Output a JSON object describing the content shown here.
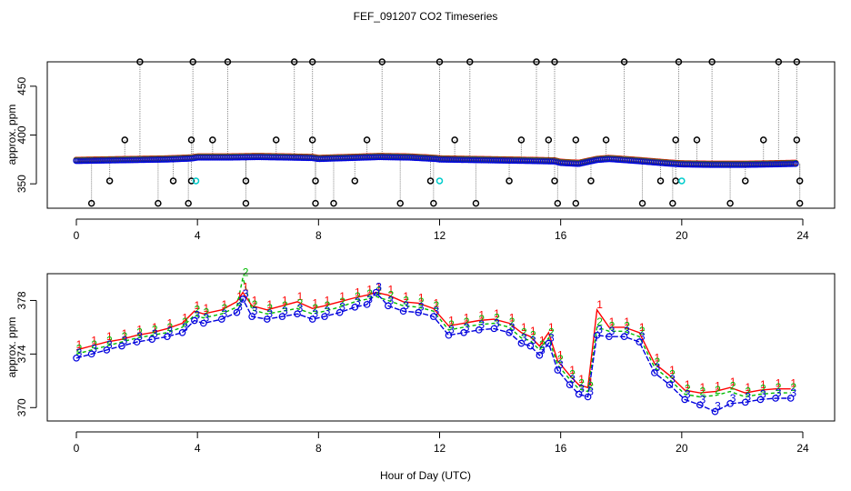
{
  "title": "FEF_091207  CO2 Timeseries",
  "xlabel": "Hour of Day (UTC)",
  "colors": {
    "series1": "#ff0000",
    "series2": "#00bb00",
    "series3": "#0000dd",
    "outlier": "#000000",
    "flagged": "#00cccc",
    "connector": "#888888"
  },
  "chart_data": [
    {
      "type": "scatter",
      "panel": "top",
      "ylabel": "approx. ppm",
      "xlim": [
        0,
        24
      ],
      "ylim": [
        325,
        475
      ],
      "x_ticks": [
        "0",
        "4",
        "8",
        "12",
        "16",
        "20",
        "24"
      ],
      "y_ticks": [
        "350",
        "400",
        "450"
      ],
      "grid": false,
      "baseline": [
        [
          0.0,
          374.0
        ],
        [
          1.0,
          374.5
        ],
        [
          2.0,
          375.0
        ],
        [
          3.0,
          375.5
        ],
        [
          3.8,
          376.5
        ],
        [
          4.0,
          377.5
        ],
        [
          5.0,
          377.5
        ],
        [
          6.0,
          378.0
        ],
        [
          7.0,
          377.5
        ],
        [
          7.8,
          377.0
        ],
        [
          8.0,
          376.0
        ],
        [
          9.0,
          377.0
        ],
        [
          10.0,
          378.0
        ],
        [
          11.0,
          377.5
        ],
        [
          11.9,
          376.0
        ],
        [
          12.0,
          375.5
        ],
        [
          13.0,
          375.0
        ],
        [
          14.0,
          374.5
        ],
        [
          15.0,
          374.0
        ],
        [
          15.8,
          373.5
        ],
        [
          16.0,
          372.0
        ],
        [
          16.6,
          371.0
        ],
        [
          17.2,
          375.0
        ],
        [
          17.6,
          376.0
        ],
        [
          18.5,
          374.0
        ],
        [
          19.5,
          371.5
        ],
        [
          20.0,
          370.5
        ],
        [
          21.0,
          370.0
        ],
        [
          22.0,
          370.0
        ],
        [
          23.0,
          370.5
        ],
        [
          23.7,
          371.0
        ]
      ],
      "outliers_high": [
        [
          2.1,
          475
        ],
        [
          3.85,
          475
        ],
        [
          5.0,
          475
        ],
        [
          7.2,
          475
        ],
        [
          7.8,
          475
        ],
        [
          10.1,
          475
        ],
        [
          12.0,
          475
        ],
        [
          13.0,
          475
        ],
        [
          15.2,
          475
        ],
        [
          15.8,
          475
        ],
        [
          18.1,
          475
        ],
        [
          19.9,
          475
        ],
        [
          21.0,
          475
        ],
        [
          23.2,
          475
        ],
        [
          23.8,
          475
        ]
      ],
      "outliers_mid": [
        [
          1.6,
          395
        ],
        [
          3.8,
          395
        ],
        [
          4.5,
          395
        ],
        [
          6.6,
          395
        ],
        [
          7.8,
          395
        ],
        [
          9.6,
          395
        ],
        [
          12.5,
          395
        ],
        [
          14.7,
          395
        ],
        [
          15.6,
          395
        ],
        [
          16.5,
          395
        ],
        [
          17.5,
          395
        ],
        [
          19.8,
          395
        ],
        [
          20.5,
          395
        ],
        [
          22.7,
          395
        ],
        [
          23.8,
          395
        ]
      ],
      "outliers_low": [
        [
          1.1,
          353
        ],
        [
          3.2,
          353
        ],
        [
          3.8,
          353
        ],
        [
          5.6,
          353
        ],
        [
          7.9,
          353
        ],
        [
          9.2,
          353
        ],
        [
          11.7,
          353
        ],
        [
          14.3,
          353
        ],
        [
          15.8,
          353
        ],
        [
          17.0,
          353
        ],
        [
          19.3,
          353
        ],
        [
          19.8,
          353
        ],
        [
          22.1,
          353
        ],
        [
          23.9,
          353
        ]
      ],
      "outliers_bottom": [
        [
          0.5,
          330
        ],
        [
          2.7,
          330
        ],
        [
          3.7,
          330
        ],
        [
          5.6,
          330
        ],
        [
          7.9,
          330
        ],
        [
          8.5,
          330
        ],
        [
          10.7,
          330
        ],
        [
          11.8,
          330
        ],
        [
          13.2,
          330
        ],
        [
          15.9,
          330
        ],
        [
          16.5,
          330
        ],
        [
          18.7,
          330
        ],
        [
          19.7,
          330
        ],
        [
          21.6,
          330
        ],
        [
          23.9,
          330
        ]
      ],
      "flagged": [
        [
          3.95,
          353
        ],
        [
          12.0,
          353
        ],
        [
          20.0,
          353
        ]
      ]
    },
    {
      "type": "line",
      "panel": "bottom",
      "ylabel": "approx. ppm",
      "xlim": [
        0,
        24
      ],
      "ylim": [
        369,
        380
      ],
      "x_ticks": [
        "0",
        "4",
        "8",
        "12",
        "16",
        "20",
        "24"
      ],
      "y_ticks": [
        "370",
        "374",
        "378"
      ],
      "grid": false,
      "series": [
        {
          "name": "1",
          "values": [
            [
              0.0,
              374.3
            ],
            [
              0.5,
              374.6
            ],
            [
              1.0,
              374.9
            ],
            [
              1.5,
              375.1
            ],
            [
              2.0,
              375.4
            ],
            [
              2.5,
              375.6
            ],
            [
              3.0,
              375.9
            ],
            [
              3.5,
              376.3
            ],
            [
              3.9,
              377.2
            ],
            [
              4.2,
              377.0
            ],
            [
              4.8,
              377.3
            ],
            [
              5.3,
              377.9
            ],
            [
              5.5,
              378.6
            ],
            [
              5.8,
              377.6
            ],
            [
              6.3,
              377.3
            ],
            [
              6.8,
              377.6
            ],
            [
              7.3,
              377.9
            ],
            [
              7.8,
              377.4
            ],
            [
              8.2,
              377.6
            ],
            [
              8.7,
              377.9
            ],
            [
              9.2,
              378.2
            ],
            [
              9.6,
              378.4
            ],
            [
              9.9,
              378.6
            ],
            [
              10.3,
              378.4
            ],
            [
              10.8,
              377.9
            ],
            [
              11.3,
              377.8
            ],
            [
              11.8,
              377.4
            ],
            [
              12.3,
              376.1
            ],
            [
              12.8,
              376.3
            ],
            [
              13.3,
              376.5
            ],
            [
              13.8,
              376.6
            ],
            [
              14.3,
              376.3
            ],
            [
              14.7,
              375.6
            ],
            [
              15.0,
              375.3
            ],
            [
              15.3,
              374.6
            ],
            [
              15.6,
              375.6
            ],
            [
              15.9,
              373.5
            ],
            [
              16.3,
              372.4
            ],
            [
              16.6,
              371.7
            ],
            [
              16.9,
              371.5
            ],
            [
              17.2,
              377.3
            ],
            [
              17.6,
              376.0
            ],
            [
              18.1,
              376.0
            ],
            [
              18.6,
              375.6
            ],
            [
              19.1,
              373.3
            ],
            [
              19.6,
              372.4
            ],
            [
              20.1,
              371.3
            ],
            [
              20.6,
              371.1
            ],
            [
              21.1,
              371.2
            ],
            [
              21.6,
              371.5
            ],
            [
              22.1,
              371.1
            ],
            [
              22.6,
              371.3
            ],
            [
              23.1,
              371.4
            ],
            [
              23.6,
              371.4
            ]
          ]
        },
        {
          "name": "2",
          "values": [
            [
              0.0,
              374.0
            ],
            [
              0.5,
              374.3
            ],
            [
              1.0,
              374.6
            ],
            [
              1.5,
              374.9
            ],
            [
              2.0,
              375.2
            ],
            [
              2.5,
              375.4
            ],
            [
              3.0,
              375.6
            ],
            [
              3.5,
              376.0
            ],
            [
              3.9,
              376.9
            ],
            [
              4.2,
              376.7
            ],
            [
              4.8,
              377.0
            ],
            [
              5.3,
              377.5
            ],
            [
              5.5,
              379.7
            ],
            [
              5.8,
              377.3
            ],
            [
              6.3,
              377.0
            ],
            [
              6.8,
              377.2
            ],
            [
              7.3,
              377.4
            ],
            [
              7.8,
              377.0
            ],
            [
              8.2,
              377.2
            ],
            [
              8.7,
              377.5
            ],
            [
              9.2,
              377.9
            ],
            [
              9.6,
              378.1
            ],
            [
              9.9,
              378.3
            ],
            [
              10.3,
              378.0
            ],
            [
              10.8,
              377.6
            ],
            [
              11.3,
              377.5
            ],
            [
              11.8,
              377.2
            ],
            [
              12.3,
              375.8
            ],
            [
              12.8,
              376.0
            ],
            [
              13.3,
              376.2
            ],
            [
              13.8,
              376.3
            ],
            [
              14.3,
              376.0
            ],
            [
              14.7,
              375.2
            ],
            [
              15.0,
              375.0
            ],
            [
              15.3,
              374.3
            ],
            [
              15.6,
              375.2
            ],
            [
              15.9,
              373.2
            ],
            [
              16.3,
              372.1
            ],
            [
              16.6,
              371.4
            ],
            [
              16.9,
              371.2
            ],
            [
              17.2,
              376.0
            ],
            [
              17.6,
              375.7
            ],
            [
              18.1,
              375.7
            ],
            [
              18.6,
              375.3
            ],
            [
              19.1,
              373.0
            ],
            [
              19.6,
              372.1
            ],
            [
              20.1,
              371.0
            ],
            [
              20.6,
              370.8
            ],
            [
              21.1,
              370.9
            ],
            [
              21.6,
              371.2
            ],
            [
              22.1,
              370.8
            ],
            [
              22.6,
              371.0
            ],
            [
              23.1,
              371.1
            ],
            [
              23.6,
              371.1
            ]
          ]
        },
        {
          "name": "3",
          "values": [
            [
              0.0,
              373.7
            ],
            [
              0.5,
              374.0
            ],
            [
              1.0,
              374.3
            ],
            [
              1.5,
              374.6
            ],
            [
              2.0,
              374.9
            ],
            [
              2.5,
              375.1
            ],
            [
              3.0,
              375.3
            ],
            [
              3.5,
              375.6
            ],
            [
              3.9,
              376.5
            ],
            [
              4.2,
              376.3
            ],
            [
              4.8,
              376.6
            ],
            [
              5.3,
              377.1
            ],
            [
              5.5,
              378.1
            ],
            [
              5.8,
              376.8
            ],
            [
              6.3,
              376.6
            ],
            [
              6.8,
              376.8
            ],
            [
              7.3,
              377.0
            ],
            [
              7.8,
              376.6
            ],
            [
              8.2,
              376.8
            ],
            [
              8.7,
              377.1
            ],
            [
              9.2,
              377.5
            ],
            [
              9.6,
              377.7
            ],
            [
              9.9,
              378.6
            ],
            [
              10.3,
              377.6
            ],
            [
              10.8,
              377.2
            ],
            [
              11.3,
              377.1
            ],
            [
              11.8,
              376.8
            ],
            [
              12.3,
              375.4
            ],
            [
              12.8,
              375.6
            ],
            [
              13.3,
              375.8
            ],
            [
              13.8,
              375.9
            ],
            [
              14.3,
              375.6
            ],
            [
              14.7,
              374.8
            ],
            [
              15.0,
              374.6
            ],
            [
              15.3,
              373.9
            ],
            [
              15.6,
              374.8
            ],
            [
              15.9,
              372.8
            ],
            [
              16.3,
              371.7
            ],
            [
              16.6,
              371.0
            ],
            [
              16.9,
              370.8
            ],
            [
              17.2,
              375.4
            ],
            [
              17.6,
              375.3
            ],
            [
              18.1,
              375.3
            ],
            [
              18.6,
              374.9
            ],
            [
              19.1,
              372.6
            ],
            [
              19.6,
              371.7
            ],
            [
              20.1,
              370.6
            ],
            [
              20.6,
              370.2
            ],
            [
              21.1,
              369.7
            ],
            [
              21.6,
              370.3
            ],
            [
              22.1,
              370.4
            ],
            [
              22.6,
              370.6
            ],
            [
              23.1,
              370.7
            ],
            [
              23.6,
              370.7
            ]
          ]
        }
      ]
    }
  ]
}
